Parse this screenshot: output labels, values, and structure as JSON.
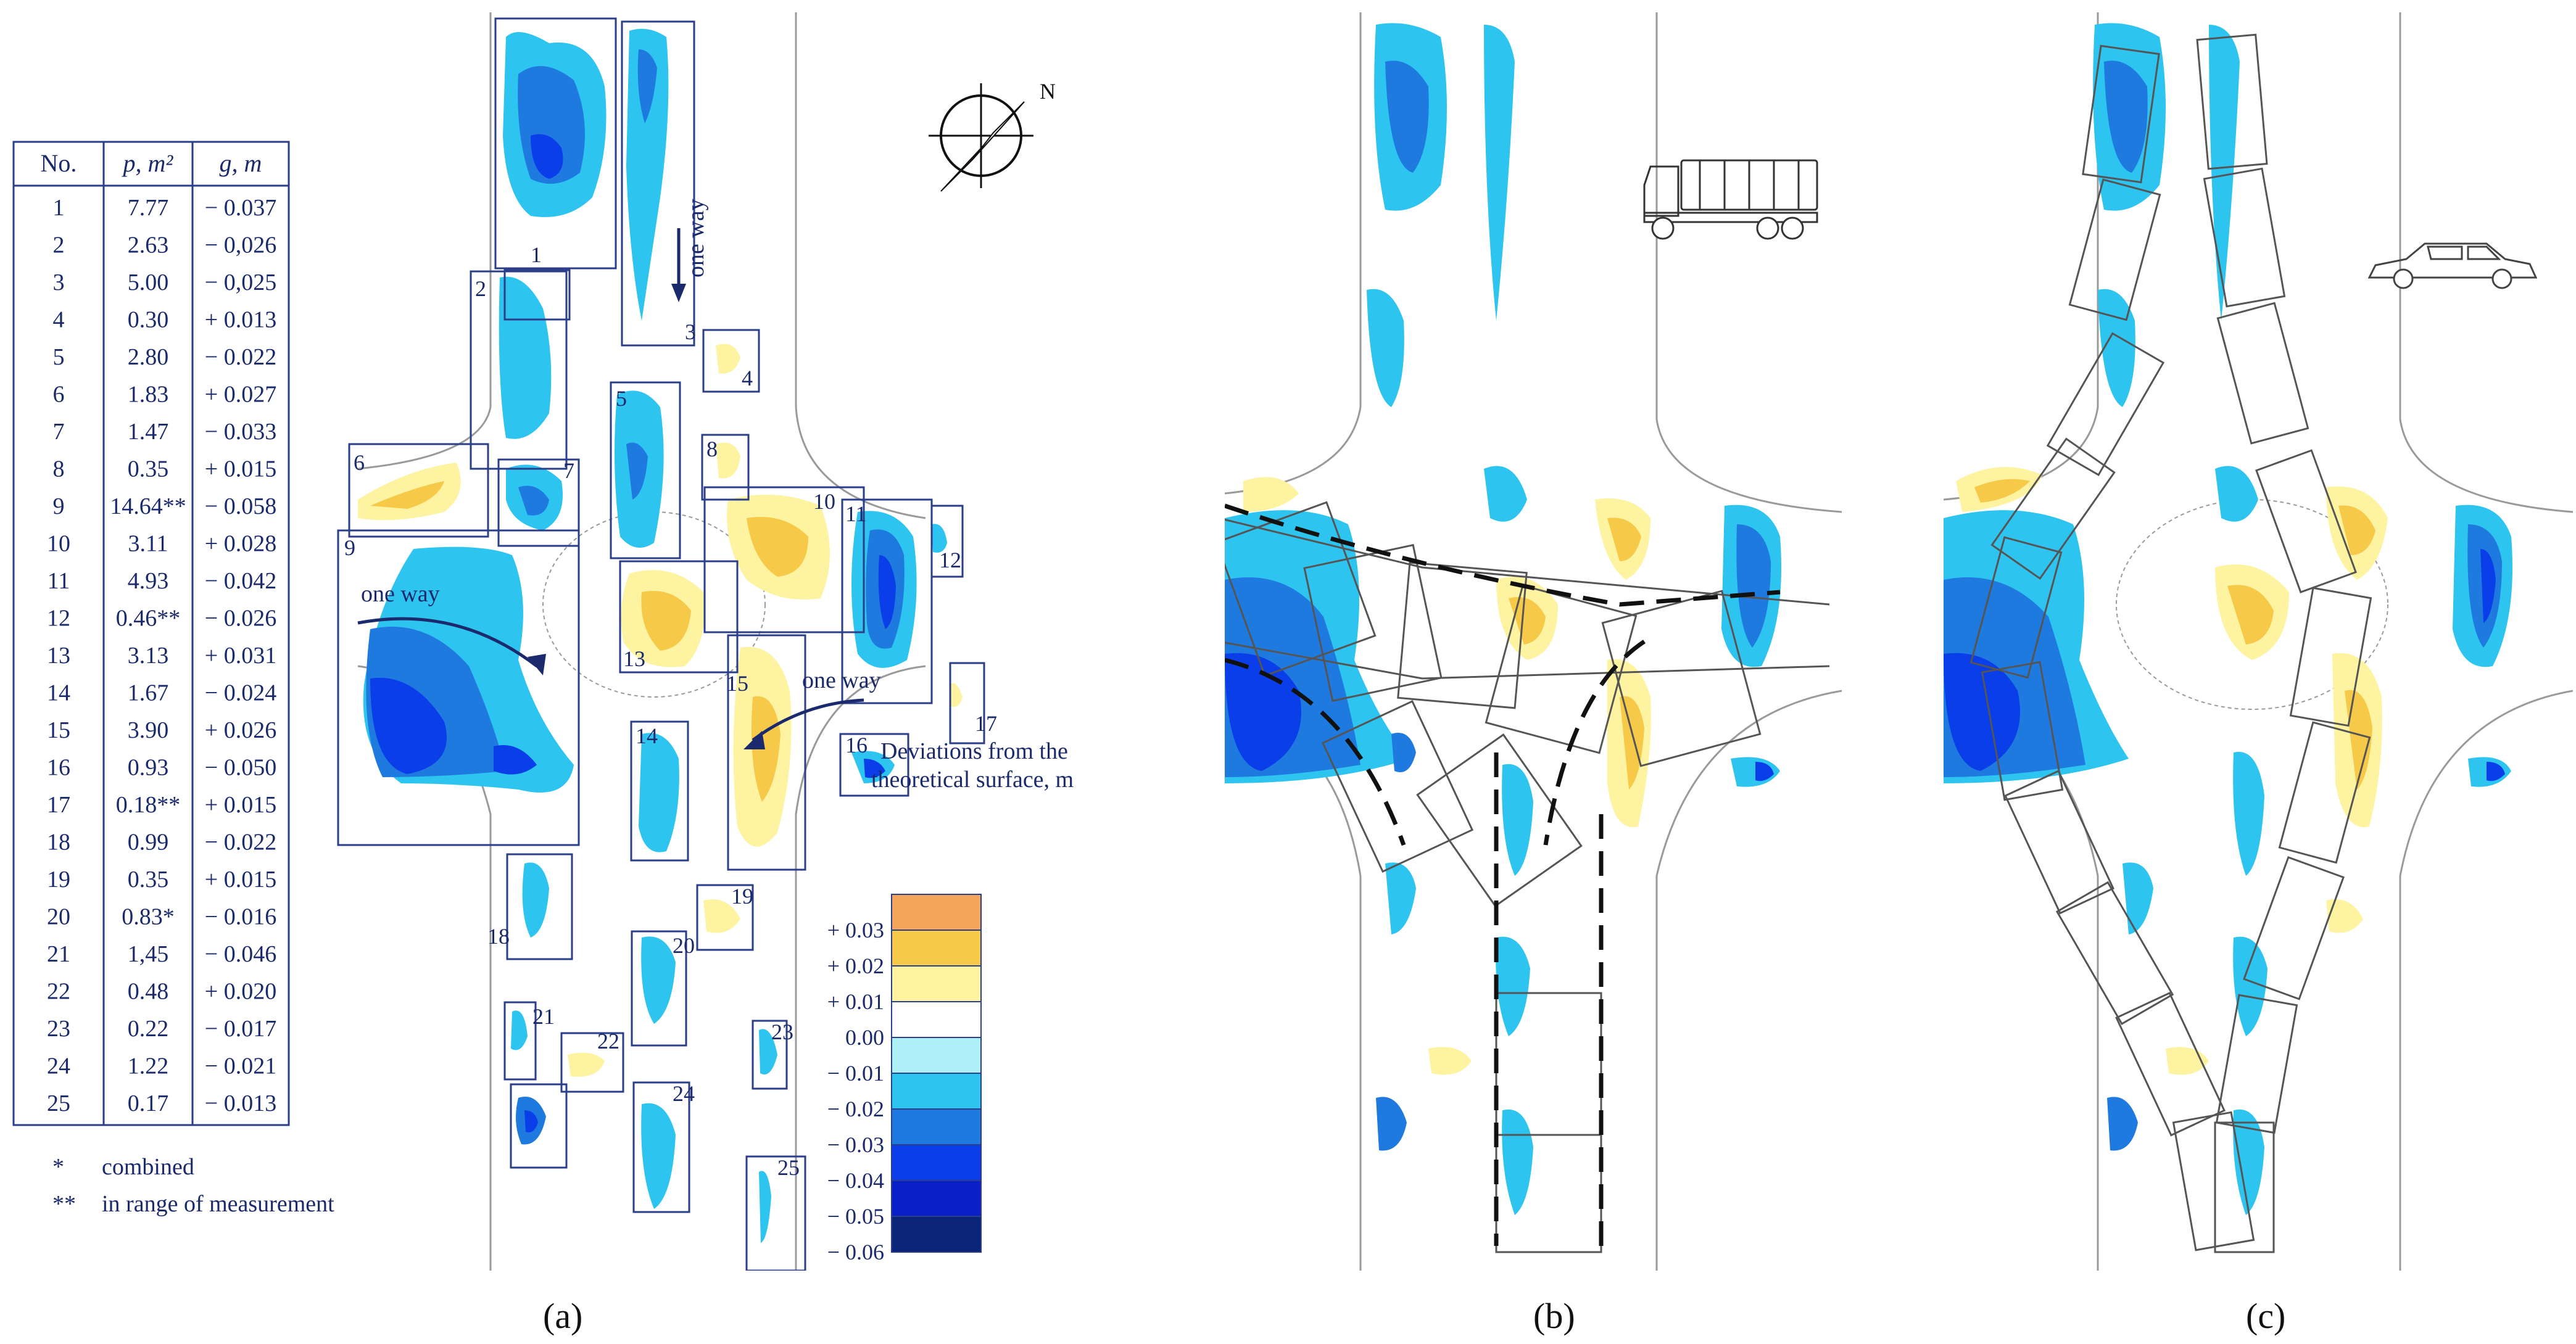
{
  "table": {
    "headers": [
      "No.",
      "p, m²",
      "g, m"
    ],
    "rows": [
      [
        "1",
        "7.77",
        "− 0.037"
      ],
      [
        "2",
        "2.63",
        "− 0,026"
      ],
      [
        "3",
        "5.00",
        "− 0,025"
      ],
      [
        "4",
        "0.30",
        "+ 0.013"
      ],
      [
        "5",
        "2.80",
        "− 0.022"
      ],
      [
        "6",
        "1.83",
        "+ 0.027"
      ],
      [
        "7",
        "1.47",
        "− 0.033"
      ],
      [
        "8",
        "0.35",
        "+ 0.015"
      ],
      [
        "9",
        "14.64**",
        "− 0.058"
      ],
      [
        "10",
        "3.11",
        "+ 0.028"
      ],
      [
        "11",
        "4.93",
        "− 0.042"
      ],
      [
        "12",
        "0.46**",
        "− 0.026"
      ],
      [
        "13",
        "3.13",
        "+ 0.031"
      ],
      [
        "14",
        "1.67",
        "− 0.024"
      ],
      [
        "15",
        "3.90",
        "+ 0.026"
      ],
      [
        "16",
        "0.93",
        "− 0.050"
      ],
      [
        "17",
        "0.18**",
        "+ 0.015"
      ],
      [
        "18",
        "0.99",
        "− 0.022"
      ],
      [
        "19",
        "0.35",
        "+ 0.015"
      ],
      [
        "20",
        "0.83*",
        "− 0.016"
      ],
      [
        "21",
        "1,45",
        "− 0.046"
      ],
      [
        "22",
        "0.48",
        "+ 0.020"
      ],
      [
        "23",
        "0.22",
        "− 0.017"
      ],
      [
        "24",
        "1.22",
        "− 0.021"
      ],
      [
        "25",
        "0.17",
        "− 0.013"
      ]
    ]
  },
  "footnotes": [
    {
      "mark": "*",
      "text": "combined"
    },
    {
      "mark": "**",
      "text": "in range of measurement"
    }
  ],
  "annotations": {
    "one_way": "one way",
    "north": "N"
  },
  "legend": {
    "title_line1": "Deviations from the",
    "title_line2": "theoretical surface, m",
    "ticks": [
      "+ 0.03",
      "+ 0.02",
      "+ 0.01",
      "0.00",
      "− 0.01",
      "− 0.02",
      "− 0.03",
      "− 0.04",
      "− 0.05",
      "− 0.06"
    ],
    "colors": [
      "#f5a55a",
      "#f7c948",
      "#fdf3a0",
      "#ffffff",
      "#aef0f8",
      "#2ec4f0",
      "#1f7ae0",
      "#0a3ee8",
      "#0a1fc8",
      "#0a2478"
    ]
  },
  "panel_labels": [
    "(a)",
    "(b)",
    "(c)"
  ],
  "colors": {
    "text": "#1a2a6c",
    "box": "#2a3e8a",
    "contour": "#9a9a9a",
    "vehicle": "#555555"
  }
}
